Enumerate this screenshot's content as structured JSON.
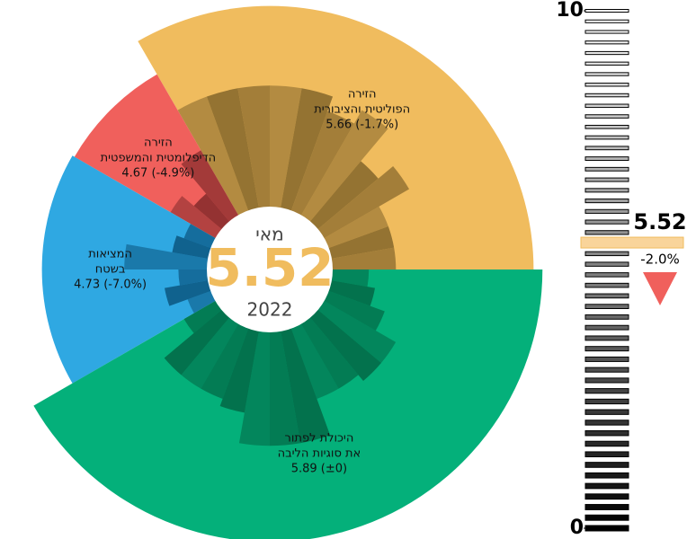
{
  "chart_data": {
    "type": "radial",
    "center": {
      "month": "מאי",
      "value": 5.52,
      "year": "2022"
    },
    "categories": [
      {
        "name": [
          "הזירה",
          "הפוליטית והציבורית"
        ],
        "value": 5.66,
        "value_label": "5.66 (-1.7%)",
        "color": "#f0bc5e",
        "inner_color": "#8a6a2e",
        "items": [
          2.1,
          2.1,
          2.1,
          3.0,
          2.5,
          3.6,
          3.2,
          3.6,
          3.6,
          3.6,
          3.6,
          3.6
        ]
      },
      {
        "name": [
          "הזירה",
          "הדיפלומטית והמשפטית"
        ],
        "value": 4.67,
        "value_label": "4.67 (-4.9%)",
        "color": "#f0605c",
        "inner_color": "#8a2e2e",
        "items": [
          2.4,
          1.4,
          1.8
        ]
      },
      {
        "name": [
          "המציאות",
          "בשטח"
        ],
        "value": 4.73,
        "value_label": "4.73 (-7.0%)",
        "color": "#2fa8e2",
        "inner_color": "#0d5a85",
        "items": [
          1.2,
          1.4,
          2.6,
          1.2,
          1.6,
          1.1
        ]
      },
      {
        "name": [
          "היכולת לפתור",
          "את סוגיות הליבה"
        ],
        "value": 5.89,
        "value_label": "5.89 (±0)",
        "color": "#04b07a",
        "inner_color": "#036b48",
        "items": [
          1.4,
          2.4,
          2.4,
          2.4,
          2.6,
          3.4,
          3.4,
          3.4,
          2.4,
          2.4,
          2.6,
          2.6,
          2.0,
          1.6,
          1.4
        ]
      }
    ],
    "gauge": {
      "ylim": [
        0,
        10
      ],
      "yticks": [
        0,
        10
      ],
      "value": 5.52,
      "change": {
        "value": -2.0,
        "label": "-2.0%"
      },
      "marker_color": "#f9d49a",
      "change_color": "#f0605c"
    }
  }
}
